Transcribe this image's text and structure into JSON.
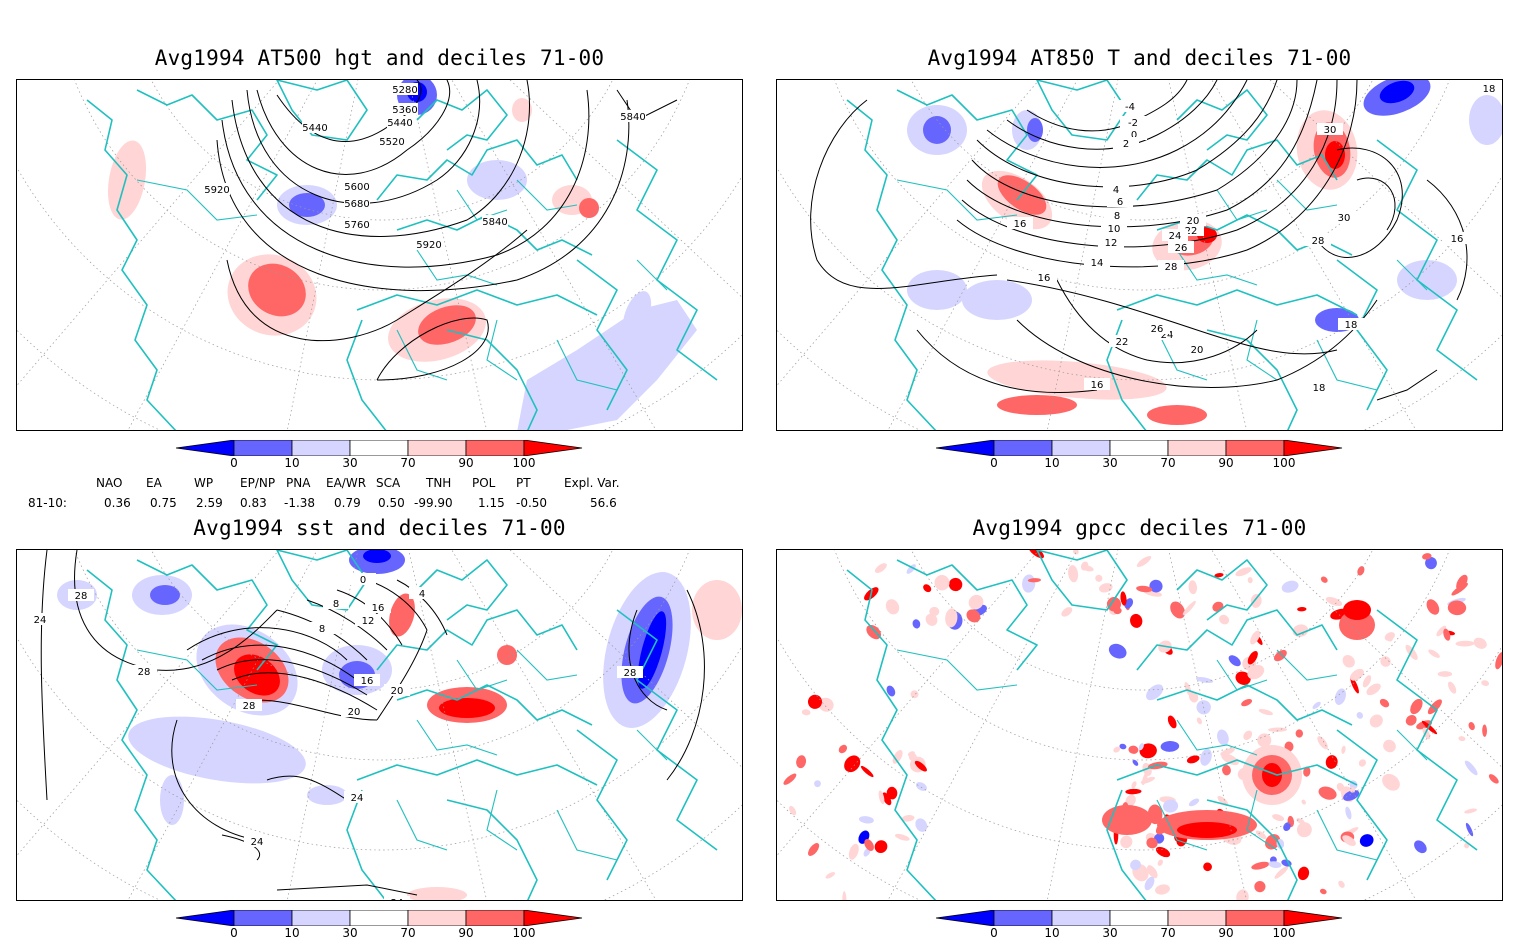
{
  "panels": [
    {
      "id": "hgt500",
      "title": "Avg1994 AT500 hgt and deciles 71-00",
      "contour_labels": [
        "5280",
        "5360",
        "5440",
        "5440",
        "5520",
        "5600",
        "5680",
        "5760",
        "5840",
        "5840",
        "5920",
        "5920"
      ]
    },
    {
      "id": "t850",
      "title": "Avg1994 AT850 T and deciles 71-00",
      "contour_labels": [
        "-4",
        "-2",
        "0",
        "2",
        "4",
        "6",
        "8",
        "10",
        "12",
        "14",
        "16",
        "16",
        "16",
        "16",
        "18",
        "18",
        "18",
        "20",
        "20",
        "22",
        "22",
        "24",
        "24",
        "26",
        "26",
        "28",
        "28",
        "30",
        "30"
      ]
    },
    {
      "id": "sst",
      "title": "Avg1994 sst and deciles 71-00",
      "contour_labels": [
        "24",
        "28",
        "28",
        "28",
        "24",
        "20",
        "16",
        "12",
        "8",
        "8",
        "4",
        "0",
        "16",
        "20",
        "24",
        "28",
        "24"
      ]
    },
    {
      "id": "gpcc",
      "title": "Avg1994 gpcc deciles 71-00",
      "contour_labels": []
    }
  ],
  "colorbar": {
    "ticks": [
      "0",
      "10",
      "30",
      "70",
      "90",
      "100"
    ],
    "colors": [
      "#0000ff",
      "#6666ff",
      "#d5d5ff",
      "#ffffff",
      "#ffd5d5",
      "#ff6666",
      "#ff0000"
    ]
  },
  "teleconnections": {
    "headers": [
      "NAO",
      "EA",
      "WP",
      "EP/NP",
      "PNA",
      "EA/WR",
      "SCA",
      "TNH",
      "POL",
      "PT",
      "Expl. Var."
    ],
    "row_label": "81-10:",
    "values": [
      "0.36",
      "0.75",
      "2.59",
      "0.83",
      "-1.38",
      "0.79",
      "0.50",
      "-99.90",
      "1.15",
      "-0.50",
      "56.6"
    ]
  },
  "colors": {
    "coast": "#20c0c0",
    "contour": "#000000",
    "grid": "#999999"
  }
}
